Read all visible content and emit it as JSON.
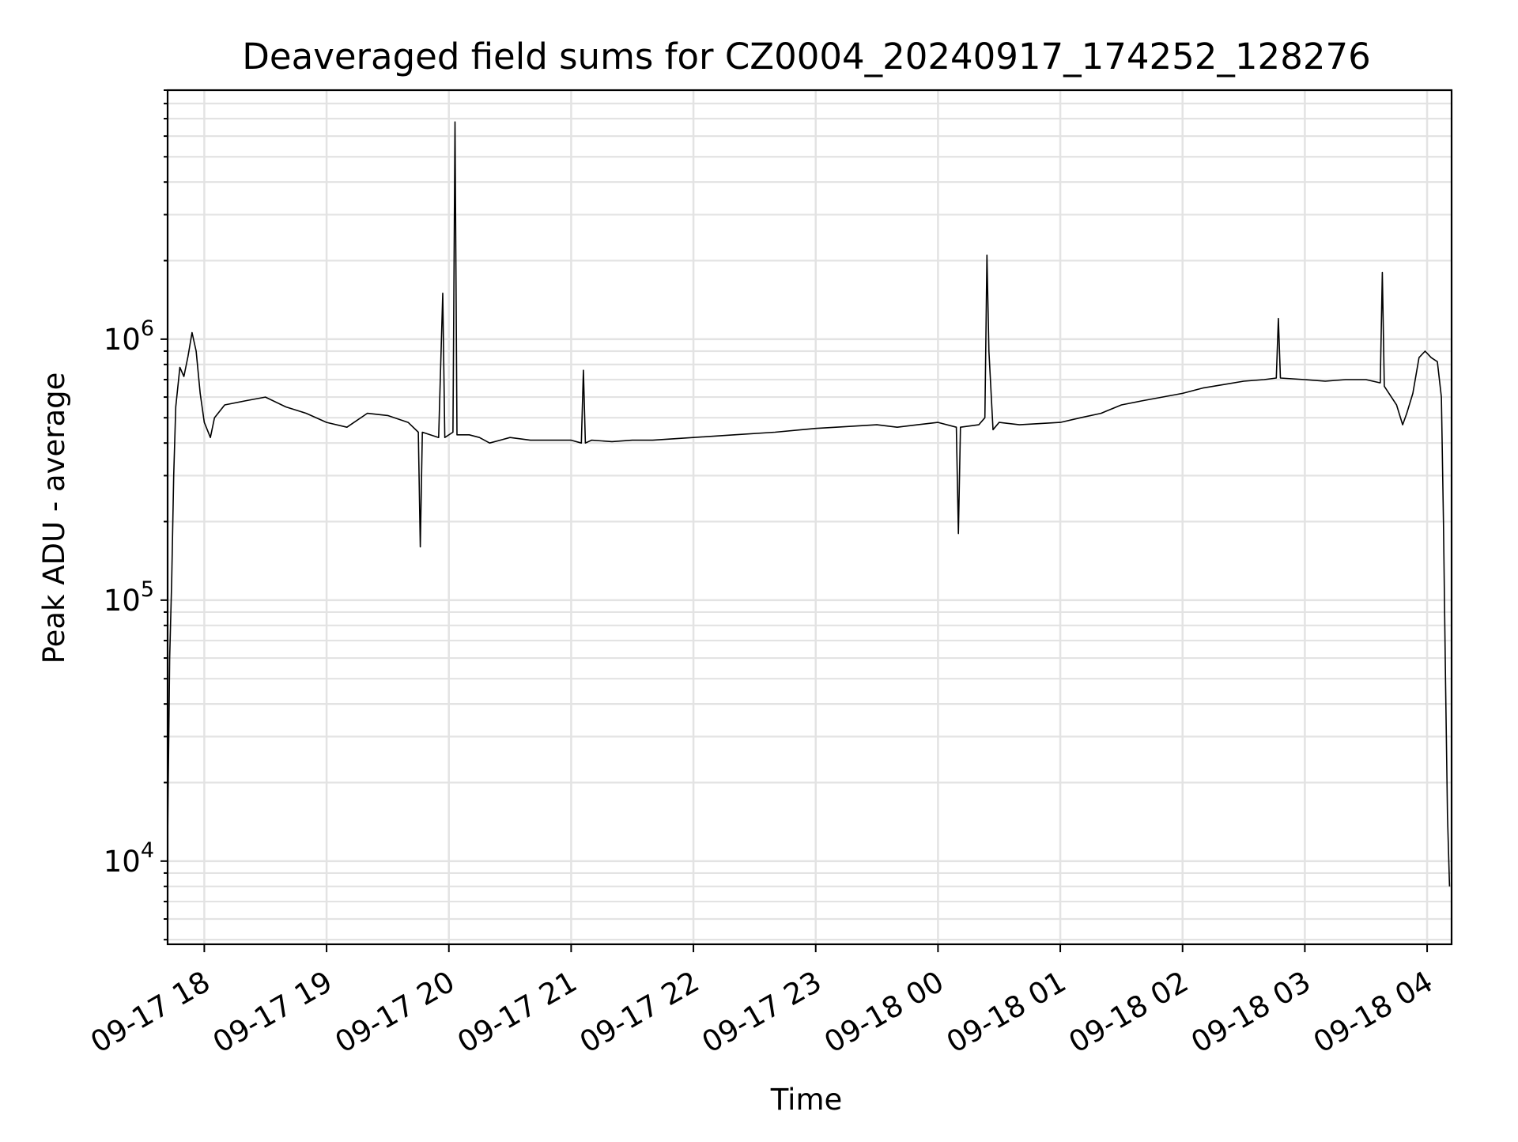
{
  "chart_data": {
    "type": "line",
    "title": "Deaveraged field sums for CZ0004_20240917_174252_128276",
    "xlabel": "Time",
    "ylabel": "Peak ADU - average",
    "yscale": "log",
    "grid": "on",
    "xlim": [
      "2024-09-17 17:42",
      "2024-09-18 04:12"
    ],
    "ylim": [
      4800,
      9000000
    ],
    "x_ticks": [
      {
        "value": "2024-09-17 18:00",
        "label": "09-17 18"
      },
      {
        "value": "2024-09-17 19:00",
        "label": "09-17 19"
      },
      {
        "value": "2024-09-17 20:00",
        "label": "09-17 20"
      },
      {
        "value": "2024-09-17 21:00",
        "label": "09-17 21"
      },
      {
        "value": "2024-09-17 22:00",
        "label": "09-17 22"
      },
      {
        "value": "2024-09-17 23:00",
        "label": "09-17 23"
      },
      {
        "value": "2024-09-18 00:00",
        "label": "09-18 00"
      },
      {
        "value": "2024-09-18 01:00",
        "label": "09-18 01"
      },
      {
        "value": "2024-09-18 02:00",
        "label": "09-18 02"
      },
      {
        "value": "2024-09-18 03:00",
        "label": "09-18 03"
      },
      {
        "value": "2024-09-18 04:00",
        "label": "09-18 04"
      }
    ],
    "y_ticks": [
      {
        "value": 10000,
        "base": "10",
        "exp": "4"
      },
      {
        "value": 100000,
        "base": "10",
        "exp": "5"
      },
      {
        "value": 1000000,
        "base": "10",
        "exp": "6"
      }
    ],
    "series": [
      {
        "color": "#000000",
        "x": [
          "2024-09-17 17:42",
          "2024-09-17 17:43",
          "2024-09-17 17:44",
          "2024-09-17 17:45",
          "2024-09-17 17:46",
          "2024-09-17 17:48",
          "2024-09-17 17:50",
          "2024-09-17 17:52",
          "2024-09-17 17:54",
          "2024-09-17 17:56",
          "2024-09-17 17:58",
          "2024-09-17 18:00",
          "2024-09-17 18:03",
          "2024-09-17 18:05",
          "2024-09-17 18:10",
          "2024-09-17 18:20",
          "2024-09-17 18:30",
          "2024-09-17 18:40",
          "2024-09-17 18:50",
          "2024-09-17 19:00",
          "2024-09-17 19:10",
          "2024-09-17 19:20",
          "2024-09-17 19:30",
          "2024-09-17 19:40",
          "2024-09-17 19:45",
          "2024-09-17 19:46",
          "2024-09-17 19:47",
          "2024-09-17 19:55",
          "2024-09-17 19:57",
          "2024-09-17 19:58",
          "2024-09-17 20:02",
          "2024-09-17 20:03",
          "2024-09-17 20:04",
          "2024-09-17 20:10",
          "2024-09-17 20:15",
          "2024-09-17 20:20",
          "2024-09-17 20:30",
          "2024-09-17 20:40",
          "2024-09-17 21:00",
          "2024-09-17 21:05",
          "2024-09-17 21:06",
          "2024-09-17 21:07",
          "2024-09-17 21:10",
          "2024-09-17 21:20",
          "2024-09-17 21:30",
          "2024-09-17 21:40",
          "2024-09-17 22:00",
          "2024-09-17 22:20",
          "2024-09-17 22:40",
          "2024-09-17 23:00",
          "2024-09-17 23:10",
          "2024-09-17 23:30",
          "2024-09-17 23:40",
          "2024-09-17 23:50",
          "2024-09-18 00:00",
          "2024-09-18 00:09",
          "2024-09-18 00:10",
          "2024-09-18 00:11",
          "2024-09-18 00:20",
          "2024-09-18 00:23",
          "2024-09-18 00:24",
          "2024-09-18 00:25",
          "2024-09-18 00:27",
          "2024-09-18 00:30",
          "2024-09-18 00:40",
          "2024-09-18 00:50",
          "2024-09-18 01:00",
          "2024-09-18 01:10",
          "2024-09-18 01:20",
          "2024-09-18 01:30",
          "2024-09-18 01:40",
          "2024-09-18 01:50",
          "2024-09-18 02:00",
          "2024-09-18 02:10",
          "2024-09-18 02:20",
          "2024-09-18 02:30",
          "2024-09-18 02:40",
          "2024-09-18 02:46",
          "2024-09-18 02:47",
          "2024-09-18 02:48",
          "2024-09-18 03:00",
          "2024-09-18 03:10",
          "2024-09-18 03:20",
          "2024-09-18 03:30",
          "2024-09-18 03:37",
          "2024-09-18 03:38",
          "2024-09-18 03:39",
          "2024-09-18 03:45",
          "2024-09-18 03:48",
          "2024-09-18 03:50",
          "2024-09-18 03:53",
          "2024-09-18 03:56",
          "2024-09-18 03:59",
          "2024-09-18 04:02",
          "2024-09-18 04:05",
          "2024-09-18 04:07",
          "2024-09-18 04:08",
          "2024-09-18 04:09",
          "2024-09-18 04:10",
          "2024-09-18 04:11"
        ],
        "y": [
          12000,
          60000,
          120000,
          300000,
          550000,
          780000,
          720000,
          860000,
          1060000,
          900000,
          620000,
          480000,
          420000,
          500000,
          560000,
          580000,
          600000,
          550000,
          520000,
          480000,
          460000,
          520000,
          510000,
          480000,
          440000,
          160000,
          440000,
          420000,
          1500000,
          420000,
          440000,
          6800000,
          430000,
          430000,
          420000,
          400000,
          420000,
          410000,
          410000,
          400000,
          760000,
          400000,
          410000,
          405000,
          410000,
          410000,
          420000,
          430000,
          440000,
          455000,
          460000,
          470000,
          460000,
          470000,
          480000,
          460000,
          180000,
          460000,
          470000,
          500000,
          2100000,
          900000,
          450000,
          480000,
          470000,
          475000,
          480000,
          500000,
          520000,
          560000,
          580000,
          600000,
          620000,
          650000,
          670000,
          690000,
          700000,
          710000,
          1200000,
          710000,
          700000,
          690000,
          700000,
          700000,
          680000,
          1800000,
          660000,
          560000,
          470000,
          520000,
          620000,
          850000,
          900000,
          850000,
          820000,
          600000,
          200000,
          50000,
          15000,
          8000
        ]
      }
    ]
  }
}
